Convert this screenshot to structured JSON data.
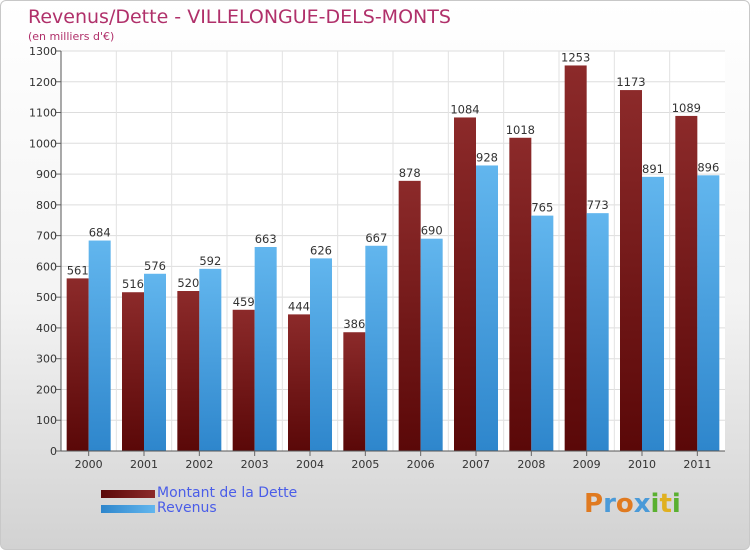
{
  "title": "Revenus/Dette - VILLELONGUE-DELS-MONTS",
  "subtitle": "(en milliers d'€)",
  "colors": {
    "debt": "#7a1a1a",
    "debt_light": "#a03030",
    "revenue": "#3a9ae0",
    "revenue_light": "#60b4ee",
    "title": "#b0306a",
    "legend_text": "#4a5de8"
  },
  "legend": {
    "debt_label": "Montant de la Dette",
    "revenue_label": "Revenus"
  },
  "logo": {
    "text": "Proxiti",
    "letter_colors": [
      "#e07a20",
      "#4a9ad8",
      "#e07a20",
      "#4a9ad8",
      "#5ab030",
      "#e0b020",
      "#5ab030"
    ]
  },
  "chart_data": {
    "type": "bar",
    "categories": [
      "2000",
      "2001",
      "2002",
      "2003",
      "2004",
      "2005",
      "2006",
      "2007",
      "2008",
      "2009",
      "2010",
      "2011"
    ],
    "series": [
      {
        "name": "Montant de la Dette",
        "values": [
          561,
          516,
          520,
          459,
          444,
          386,
          878,
          1084,
          1018,
          1253,
          1173,
          1089
        ]
      },
      {
        "name": "Revenus",
        "values": [
          684,
          576,
          592,
          663,
          626,
          667,
          690,
          928,
          765,
          773,
          891,
          896
        ]
      }
    ],
    "ylim": [
      0,
      1300
    ],
    "yticks": [
      0,
      100,
      200,
      300,
      400,
      500,
      600,
      700,
      800,
      900,
      1000,
      1100,
      1200,
      1300
    ],
    "grid": true,
    "legend_position": "bottom-left"
  }
}
